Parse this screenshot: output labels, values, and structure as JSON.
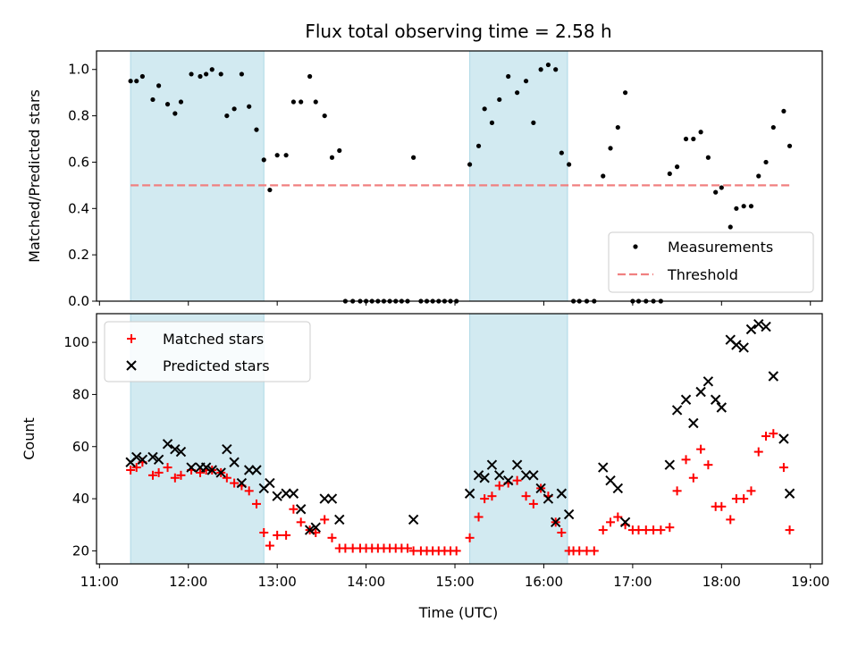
{
  "chart_data": {
    "type": "scatter",
    "title": "Flux total observing time = 2.58 h",
    "colors": {
      "band": "#add8e6",
      "measurement": "#000000",
      "threshold": "#f08080",
      "matched": "#ff0000",
      "predicted": "#000000"
    },
    "bands": [
      [
        "11:21",
        "12:51"
      ],
      [
        "15:10",
        "16:16"
      ]
    ],
    "x": {
      "label": "Time (UTC)",
      "ticks": [
        "11:00",
        "12:00",
        "13:00",
        "14:00",
        "15:00",
        "16:00",
        "17:00",
        "18:00",
        "19:00"
      ],
      "range": [
        "10:58",
        "19:08"
      ]
    },
    "top": {
      "ylabel": "Matched/Predicted stars",
      "ylim": [
        0,
        1.08
      ],
      "yticks": [
        "0.0",
        "0.2",
        "0.4",
        "0.6",
        "0.8",
        "1.0"
      ],
      "legend": {
        "placement": "lower-right",
        "measurements": "Measurements",
        "threshold": "Threshold"
      },
      "threshold": {
        "value": 0.5,
        "x": [
          "11:21",
          "18:46"
        ]
      },
      "measurements": [
        [
          "11:21",
          0.95
        ],
        [
          "11:25",
          0.95
        ],
        [
          "11:29",
          0.97
        ],
        [
          "11:36",
          0.87
        ],
        [
          "11:40",
          0.93
        ],
        [
          "11:46",
          0.85
        ],
        [
          "11:51",
          0.81
        ],
        [
          "11:55",
          0.86
        ],
        [
          "12:02",
          0.98
        ],
        [
          "12:08",
          0.97
        ],
        [
          "12:12",
          0.98
        ],
        [
          "12:16",
          1.0
        ],
        [
          "12:22",
          0.98
        ],
        [
          "12:26",
          0.8
        ],
        [
          "12:31",
          0.83
        ],
        [
          "12:36",
          0.98
        ],
        [
          "12:41",
          0.84
        ],
        [
          "12:46",
          0.74
        ],
        [
          "12:51",
          0.61
        ],
        [
          "12:55",
          0.48
        ],
        [
          "13:00",
          0.63
        ],
        [
          "13:06",
          0.63
        ],
        [
          "13:11",
          0.86
        ],
        [
          "13:16",
          0.86
        ],
        [
          "13:22",
          0.97
        ],
        [
          "13:26",
          0.86
        ],
        [
          "13:32",
          0.8
        ],
        [
          "13:37",
          0.62
        ],
        [
          "13:42",
          0.65
        ],
        [
          "13:46",
          0
        ],
        [
          "13:51",
          0
        ],
        [
          "13:56",
          0
        ],
        [
          "14:00",
          0
        ],
        [
          "14:04",
          0
        ],
        [
          "14:08",
          0
        ],
        [
          "14:12",
          0
        ],
        [
          "14:16",
          0
        ],
        [
          "14:20",
          0
        ],
        [
          "14:24",
          0
        ],
        [
          "14:28",
          0
        ],
        [
          "14:32",
          0.62
        ],
        [
          "14:37",
          0
        ],
        [
          "14:41",
          0
        ],
        [
          "14:45",
          0
        ],
        [
          "14:49",
          0
        ],
        [
          "14:53",
          0
        ],
        [
          "14:57",
          0
        ],
        [
          "15:01",
          0
        ],
        [
          "15:10",
          0.59
        ],
        [
          "15:16",
          0.67
        ],
        [
          "15:20",
          0.83
        ],
        [
          "15:25",
          0.77
        ],
        [
          "15:30",
          0.87
        ],
        [
          "15:36",
          0.97
        ],
        [
          "15:42",
          0.9
        ],
        [
          "15:48",
          0.95
        ],
        [
          "15:53",
          0.77
        ],
        [
          "15:58",
          1.0
        ],
        [
          "16:03",
          1.02
        ],
        [
          "16:08",
          1.0
        ],
        [
          "16:12",
          0.64
        ],
        [
          "16:17",
          0.59
        ],
        [
          "16:20",
          0
        ],
        [
          "16:24",
          0
        ],
        [
          "16:29",
          0
        ],
        [
          "16:34",
          0
        ],
        [
          "16:40",
          0.54
        ],
        [
          "16:45",
          0.66
        ],
        [
          "16:50",
          0.75
        ],
        [
          "16:55",
          0.9
        ],
        [
          "17:00",
          0
        ],
        [
          "17:04",
          0
        ],
        [
          "17:09",
          0
        ],
        [
          "17:14",
          0
        ],
        [
          "17:19",
          0
        ],
        [
          "17:25",
          0.55
        ],
        [
          "17:30",
          0.58
        ],
        [
          "17:36",
          0.7
        ],
        [
          "17:41",
          0.7
        ],
        [
          "17:46",
          0.73
        ],
        [
          "17:51",
          0.62
        ],
        [
          "17:56",
          0.47
        ],
        [
          "18:00",
          0.49
        ],
        [
          "18:06",
          0.32
        ],
        [
          "18:10",
          0.4
        ],
        [
          "18:15",
          0.41
        ],
        [
          "18:20",
          0.41
        ],
        [
          "18:25",
          0.54
        ],
        [
          "18:30",
          0.6
        ],
        [
          "18:35",
          0.75
        ],
        [
          "18:42",
          0.82
        ],
        [
          "18:46",
          0.67
        ]
      ]
    },
    "bottom": {
      "ylabel": "Count",
      "ylim": [
        15,
        111
      ],
      "yticks": [
        "20",
        "40",
        "60",
        "80",
        "100"
      ],
      "legend": {
        "placement": "upper-left",
        "matched": "Matched stars",
        "predicted": "Predicted stars"
      },
      "matched": [
        [
          "11:21",
          51
        ],
        [
          "11:25",
          52
        ],
        [
          "11:29",
          54
        ],
        [
          "11:36",
          49
        ],
        [
          "11:40",
          50
        ],
        [
          "11:46",
          52
        ],
        [
          "11:51",
          48
        ],
        [
          "11:55",
          49
        ],
        [
          "12:02",
          51
        ],
        [
          "12:08",
          50
        ],
        [
          "12:12",
          51
        ],
        [
          "12:16",
          51
        ],
        [
          "12:22",
          50
        ],
        [
          "12:26",
          48
        ],
        [
          "12:31",
          46
        ],
        [
          "12:36",
          45
        ],
        [
          "12:41",
          43
        ],
        [
          "12:46",
          38
        ],
        [
          "12:51",
          27
        ],
        [
          "12:55",
          22
        ],
        [
          "13:00",
          26
        ],
        [
          "13:06",
          26
        ],
        [
          "13:11",
          36
        ],
        [
          "13:16",
          31
        ],
        [
          "13:22",
          28
        ],
        [
          "13:26",
          27
        ],
        [
          "13:32",
          32
        ],
        [
          "13:37",
          25
        ],
        [
          "13:42",
          21
        ],
        [
          "13:46",
          21
        ],
        [
          "13:51",
          21
        ],
        [
          "13:56",
          21
        ],
        [
          "14:00",
          21
        ],
        [
          "14:04",
          21
        ],
        [
          "14:08",
          21
        ],
        [
          "14:12",
          21
        ],
        [
          "14:16",
          21
        ],
        [
          "14:20",
          21
        ],
        [
          "14:24",
          21
        ],
        [
          "14:28",
          21
        ],
        [
          "14:32",
          20
        ],
        [
          "14:37",
          20
        ],
        [
          "14:41",
          20
        ],
        [
          "14:45",
          20
        ],
        [
          "14:49",
          20
        ],
        [
          "14:53",
          20
        ],
        [
          "14:57",
          20
        ],
        [
          "15:01",
          20
        ],
        [
          "15:10",
          25
        ],
        [
          "15:16",
          33
        ],
        [
          "15:20",
          40
        ],
        [
          "15:25",
          41
        ],
        [
          "15:30",
          45
        ],
        [
          "15:36",
          46
        ],
        [
          "15:42",
          47
        ],
        [
          "15:48",
          41
        ],
        [
          "15:53",
          38
        ],
        [
          "15:58",
          44
        ],
        [
          "16:03",
          41
        ],
        [
          "16:08",
          31
        ],
        [
          "16:12",
          27
        ],
        [
          "16:17",
          20
        ],
        [
          "16:20",
          20
        ],
        [
          "16:24",
          20
        ],
        [
          "16:29",
          20
        ],
        [
          "16:34",
          20
        ],
        [
          "16:40",
          28
        ],
        [
          "16:45",
          31
        ],
        [
          "16:50",
          33
        ],
        [
          "16:55",
          30
        ],
        [
          "17:00",
          28
        ],
        [
          "17:04",
          28
        ],
        [
          "17:09",
          28
        ],
        [
          "17:14",
          28
        ],
        [
          "17:19",
          28
        ],
        [
          "17:25",
          29
        ],
        [
          "17:30",
          43
        ],
        [
          "17:36",
          55
        ],
        [
          "17:41",
          48
        ],
        [
          "17:46",
          59
        ],
        [
          "17:51",
          53
        ],
        [
          "17:56",
          37
        ],
        [
          "18:00",
          37
        ],
        [
          "18:06",
          32
        ],
        [
          "18:10",
          40
        ],
        [
          "18:15",
          40
        ],
        [
          "18:20",
          43
        ],
        [
          "18:25",
          58
        ],
        [
          "18:30",
          64
        ],
        [
          "18:35",
          65
        ],
        [
          "18:42",
          52
        ],
        [
          "18:46",
          28
        ]
      ],
      "predicted": [
        [
          "11:21",
          54
        ],
        [
          "11:25",
          56
        ],
        [
          "11:29",
          55
        ],
        [
          "11:36",
          56
        ],
        [
          "11:40",
          55
        ],
        [
          "11:46",
          61
        ],
        [
          "11:51",
          59
        ],
        [
          "11:55",
          58
        ],
        [
          "12:02",
          52
        ],
        [
          "12:08",
          52
        ],
        [
          "12:12",
          52
        ],
        [
          "12:16",
          51
        ],
        [
          "12:22",
          50
        ],
        [
          "12:26",
          59
        ],
        [
          "12:31",
          54
        ],
        [
          "12:36",
          46
        ],
        [
          "12:41",
          51
        ],
        [
          "12:46",
          51
        ],
        [
          "12:51",
          44
        ],
        [
          "12:55",
          46
        ],
        [
          "13:00",
          41
        ],
        [
          "13:06",
          42
        ],
        [
          "13:11",
          42
        ],
        [
          "13:16",
          36
        ],
        [
          "13:22",
          28
        ],
        [
          "13:26",
          29
        ],
        [
          "13:32",
          40
        ],
        [
          "13:37",
          40
        ],
        [
          "13:42",
          32
        ],
        [
          "14:32",
          32
        ],
        [
          "15:10",
          42
        ],
        [
          "15:16",
          49
        ],
        [
          "15:20",
          48
        ],
        [
          "15:25",
          53
        ],
        [
          "15:30",
          49
        ],
        [
          "15:36",
          47
        ],
        [
          "15:42",
          53
        ],
        [
          "15:48",
          49
        ],
        [
          "15:53",
          49
        ],
        [
          "15:58",
          44
        ],
        [
          "16:03",
          40
        ],
        [
          "16:08",
          31
        ],
        [
          "16:12",
          42
        ],
        [
          "16:17",
          34
        ],
        [
          "16:40",
          52
        ],
        [
          "16:45",
          47
        ],
        [
          "16:50",
          44
        ],
        [
          "16:55",
          31
        ],
        [
          "17:25",
          53
        ],
        [
          "17:30",
          74
        ],
        [
          "17:36",
          78
        ],
        [
          "17:41",
          69
        ],
        [
          "17:46",
          81
        ],
        [
          "17:51",
          85
        ],
        [
          "17:56",
          78
        ],
        [
          "18:00",
          75
        ],
        [
          "18:06",
          101
        ],
        [
          "18:10",
          99
        ],
        [
          "18:15",
          98
        ],
        [
          "18:20",
          105
        ],
        [
          "18:25",
          107
        ],
        [
          "18:30",
          106
        ],
        [
          "18:35",
          87
        ],
        [
          "18:42",
          63
        ],
        [
          "18:46",
          42
        ]
      ]
    }
  }
}
